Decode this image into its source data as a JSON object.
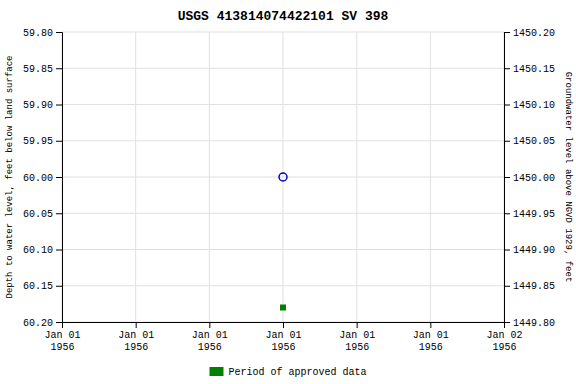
{
  "chart_data": {
    "type": "scatter",
    "title": "USGS 413814074422101 SV 398",
    "ylabel": "Depth to water level, feet below land surface",
    "y2label": "Groundwater level above NGVD 1929, feet",
    "categories": [
      "Jan 01\n1956",
      "Jan 01\n1956",
      "Jan 01\n1956",
      "Jan 01\n1956",
      "Jan 01\n1956",
      "Jan 01\n1956",
      "Jan 02\n1956"
    ],
    "series": [
      {
        "color": "#0000cc",
        "marker": "circle",
        "values": [
          null,
          null,
          null,
          60.0,
          null,
          null,
          null
        ]
      },
      {
        "name": "Period of approved data",
        "color": "#008000",
        "marker": "square",
        "values": [
          null,
          null,
          null,
          60.18,
          null,
          null,
          null
        ]
      }
    ],
    "ylim": [
      60.2,
      59.8
    ],
    "yticks": [
      {
        "value": 59.8,
        "label": "59.80"
      },
      59.85,
      {
        "value": 59.9,
        "label": "59.90"
      },
      59.95,
      {
        "value": 60,
        "label": "60.00"
      },
      60.05,
      {
        "value": 60.1,
        "label": "60.10"
      },
      60.15,
      {
        "value": 60.2,
        "label": "60.20"
      }
    ],
    "y2lim": [
      1449.8,
      1450.2
    ],
    "y2ticks": [
      {
        "value": 1450.2,
        "label": "1450.20"
      },
      1450.15,
      {
        "value": 1450.1,
        "label": "1450.10"
      },
      1450.05,
      {
        "value": 1450,
        "label": "1450.00"
      },
      1449.95,
      {
        "value": 1449.9,
        "label": "1449.90"
      },
      1449.85,
      {
        "value": 1449.8,
        "label": "1449.80"
      }
    ],
    "grid": true,
    "legend": "bottom"
  }
}
